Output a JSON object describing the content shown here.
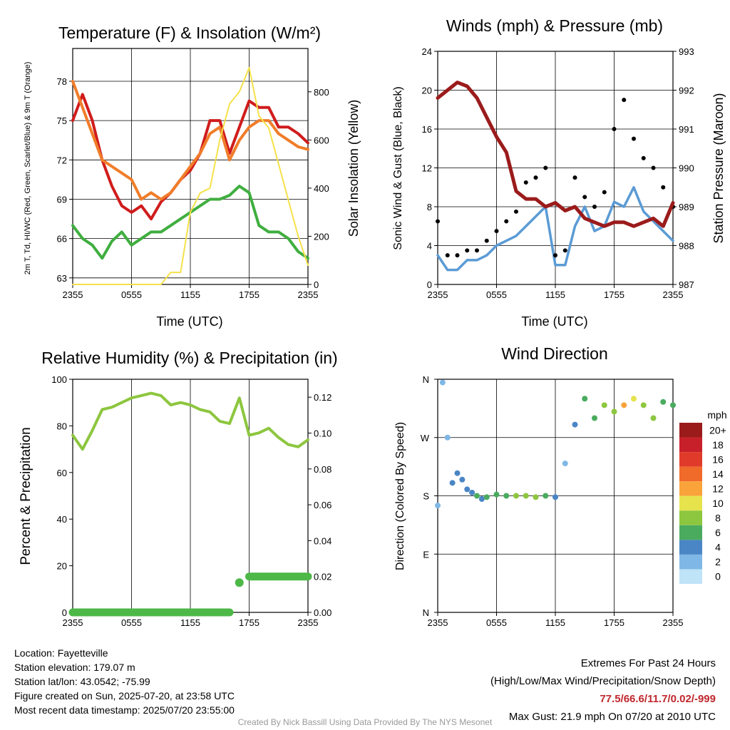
{
  "time_ticks": [
    "2355",
    "0555",
    "1155",
    "1755",
    "2355"
  ],
  "time_label": "Time (UTC)",
  "colors": {
    "temp_red": "#d01c1c",
    "dewpoint_green": "#3fae3f",
    "temp9m_orange": "#f07d2a",
    "solar_yellow": "#f5e14a",
    "wind_blue": "#5b9bd5",
    "gust_black": "#000000",
    "pressure_maroon": "#9b1b1b",
    "rh_green": "#8dc63f",
    "precip_green": "#4db848"
  },
  "chart_data": [
    {
      "type": "line",
      "title": "Temperature (F) & Insolation (W/m²)",
      "ylabel": "2m T, Td, HI/WC (Red, Green, Scarlet/Blue) & 9m T (Orange)",
      "ylabel2": "Solar Insolation (Yellow)",
      "x_ticks": [
        "2355",
        "0555",
        "1155",
        "1755",
        "2355"
      ],
      "ylim": [
        62.5,
        80.5
      ],
      "y_ticks": [
        63,
        66,
        69,
        72,
        75,
        78
      ],
      "y2lim": [
        0,
        980
      ],
      "y2_ticks": [
        0,
        200,
        400,
        600,
        800
      ],
      "x_hours": [
        0,
        1,
        2,
        3,
        4,
        5,
        6,
        7,
        8,
        9,
        10,
        11,
        12,
        13,
        14,
        15,
        16,
        17,
        18,
        19,
        20,
        21,
        22,
        23,
        24
      ],
      "series": [
        {
          "name": "2m T",
          "axis": "left",
          "values": [
            75,
            77,
            75,
            72,
            70,
            68.5,
            68,
            68.5,
            67.5,
            68.8,
            69.5,
            70.5,
            71.2,
            72.5,
            75,
            75,
            72.5,
            74.5,
            76.5,
            76,
            76,
            74.5,
            74.5,
            74,
            73.3
          ]
        },
        {
          "name": "2m Td",
          "axis": "left",
          "values": [
            67,
            66,
            65.5,
            64.5,
            65.8,
            66.5,
            65.5,
            66,
            66.5,
            66.5,
            67,
            67.5,
            68,
            68.5,
            69,
            69,
            69.3,
            70,
            69.5,
            67,
            66.5,
            66.5,
            66,
            65,
            64.5
          ]
        },
        {
          "name": "9m T",
          "axis": "left",
          "values": [
            78,
            76,
            74,
            72,
            71.5,
            71,
            70.5,
            69,
            69.5,
            69,
            69.5,
            70.5,
            71.5,
            72.5,
            74,
            74.5,
            72,
            73.5,
            74.5,
            75,
            75,
            74,
            73.5,
            73,
            72.8
          ]
        },
        {
          "name": "Solar Insolation",
          "axis": "right",
          "values": [
            0,
            0,
            0,
            0,
            0,
            0,
            0,
            0,
            0,
            0,
            50,
            50,
            300,
            380,
            400,
            600,
            750,
            800,
            900,
            700,
            650,
            500,
            350,
            200,
            80
          ]
        }
      ]
    },
    {
      "type": "line",
      "title": "Winds (mph) & Pressure (mb)",
      "ylabel": "Sonic Wind & Gust (Blue, Black)",
      "ylabel2": "Station Pressure (Maroon)",
      "x_ticks": [
        "2355",
        "0555",
        "1155",
        "1755",
        "2355"
      ],
      "ylim": [
        0,
        24
      ],
      "y_ticks": [
        0,
        4,
        8,
        12,
        16,
        20,
        24
      ],
      "y2lim": [
        987,
        993
      ],
      "y2_ticks": [
        987,
        988,
        989,
        990,
        991,
        992,
        993
      ],
      "x_hours": [
        0,
        1,
        2,
        3,
        4,
        5,
        6,
        7,
        8,
        9,
        10,
        11,
        12,
        13,
        14,
        15,
        16,
        17,
        18,
        19,
        20,
        21,
        22,
        23,
        24
      ],
      "series": [
        {
          "name": "Sonic Wind",
          "axis": "left",
          "values": [
            3,
            1.5,
            1.5,
            2.5,
            2.5,
            3,
            4,
            4.5,
            5,
            6,
            7,
            8,
            2,
            2,
            6,
            8,
            5.5,
            6,
            8.5,
            8,
            10,
            7.5,
            6.5,
            5.5,
            4.5
          ]
        },
        {
          "name": "Gust",
          "axis": "left",
          "values": [
            6.5,
            3,
            3,
            3.5,
            3.5,
            4.5,
            5.5,
            6.5,
            7.5,
            10.5,
            11,
            12,
            3,
            3.5,
            11,
            9,
            8,
            9.5,
            16,
            19,
            15,
            13,
            12,
            10,
            8
          ]
        },
        {
          "name": "Station Pressure",
          "axis": "right",
          "values": [
            991.8,
            992,
            992.2,
            992.1,
            991.8,
            991.3,
            990.8,
            990.4,
            989.4,
            989.2,
            989.2,
            989,
            989.1,
            988.9,
            989,
            988.7,
            988.6,
            988.5,
            988.6,
            988.6,
            988.5,
            988.6,
            988.7,
            988.5,
            989.1
          ]
        }
      ]
    },
    {
      "type": "line",
      "title": "Relative Humidity (%) & Precipitation (in)",
      "ylabel": "Percent & Precipitation",
      "x_ticks": [
        "2355",
        "0555",
        "1155",
        "1755",
        "2355"
      ],
      "ylim": [
        0,
        100
      ],
      "y_ticks": [
        0,
        20,
        40,
        60,
        80,
        100
      ],
      "y2lim": [
        0,
        0.13
      ],
      "y2_ticks": [
        "0.00",
        "0.02",
        "0.04",
        "0.06",
        "0.08",
        "0.10",
        "0.12"
      ],
      "x_hours": [
        0,
        1,
        2,
        3,
        4,
        5,
        6,
        7,
        8,
        9,
        10,
        11,
        12,
        13,
        14,
        15,
        16,
        17,
        18,
        19,
        20,
        21,
        22,
        23,
        24
      ],
      "series": [
        {
          "name": "Relative Humidity",
          "axis": "left",
          "values": [
            76,
            70,
            78,
            87,
            88,
            90,
            92,
            93,
            94,
            93,
            89,
            90,
            89,
            87,
            86,
            82,
            81,
            92,
            76,
            77,
            79,
            75,
            72,
            71,
            74
          ]
        },
        {
          "name": "Precipitation",
          "axis": "right",
          "values": [
            0,
            0,
            0,
            0,
            0,
            0,
            0,
            0,
            0,
            0,
            0,
            0,
            0,
            0,
            0,
            0,
            0,
            0.019,
            0.02,
            0.02,
            0.02,
            0.02,
            0.02,
            0.02,
            0.02
          ]
        }
      ]
    },
    {
      "type": "scatter",
      "title": "Wind Direction",
      "ylabel": "Direction (Colored By Speed)",
      "x_ticks": [
        "2355",
        "0555",
        "1155",
        "1755",
        "2355"
      ],
      "y_ticks": [
        "N",
        "E",
        "S",
        "W",
        "N"
      ],
      "ylim": [
        0,
        360
      ],
      "x_hours": [
        0,
        0.5,
        1,
        1.5,
        2,
        2.5,
        3,
        3.5,
        4,
        4.5,
        5,
        6,
        7,
        8,
        9,
        10,
        11,
        12,
        13,
        14,
        15,
        16,
        17,
        18,
        19,
        20,
        21,
        22,
        23,
        24
      ],
      "direction_deg": [
        165,
        355,
        270,
        200,
        215,
        205,
        190,
        185,
        180,
        175,
        178,
        182,
        180,
        180,
        180,
        178,
        180,
        178,
        230,
        290,
        330,
        300,
        320,
        310,
        320,
        330,
        320,
        300,
        325,
        320
      ],
      "speed_mph": [
        2,
        1,
        2,
        3,
        3,
        4,
        4,
        4,
        5,
        4,
        5,
        6,
        6,
        7,
        7,
        7,
        6,
        4,
        2,
        3,
        5,
        6,
        7,
        8,
        11,
        9,
        8,
        7,
        6,
        5
      ],
      "colorbar": {
        "label": "mph",
        "levels": [
          "20+",
          "18",
          "16",
          "14",
          "12",
          "10",
          "8",
          "6",
          "4",
          "2",
          "0"
        ],
        "colors": [
          "#9b1b1b",
          "#c8202a",
          "#e03b2a",
          "#f06a2a",
          "#f9a33a",
          "#e6e34d",
          "#8dc63f",
          "#4aab5e",
          "#4a86c5",
          "#7fb8e6",
          "#bfe3f7"
        ]
      }
    }
  ],
  "info": {
    "location": "Location: Fayetteville",
    "elevation": "Station elevation: 179.07 m",
    "latlon": "Station lat/lon: 43.0542; -75.99",
    "created": "Figure created on Sun, 2025-07-20, at 23:58 UTC",
    "recent": "Most recent data timestamp: 2025/07/20 23:55:00"
  },
  "extremes": {
    "title": "Extremes For Past 24 Hours",
    "subtitle": "(High/Low/Max Wind/Precipitation/Snow Depth)",
    "values": "77.5/66.6/11.7/0.02/-999",
    "max_gust": "Max Gust: 21.9 mph On 07/20 at 2010 UTC"
  },
  "credit": "Created By Nick Bassill Using Data Provided By The NYS Mesonet"
}
